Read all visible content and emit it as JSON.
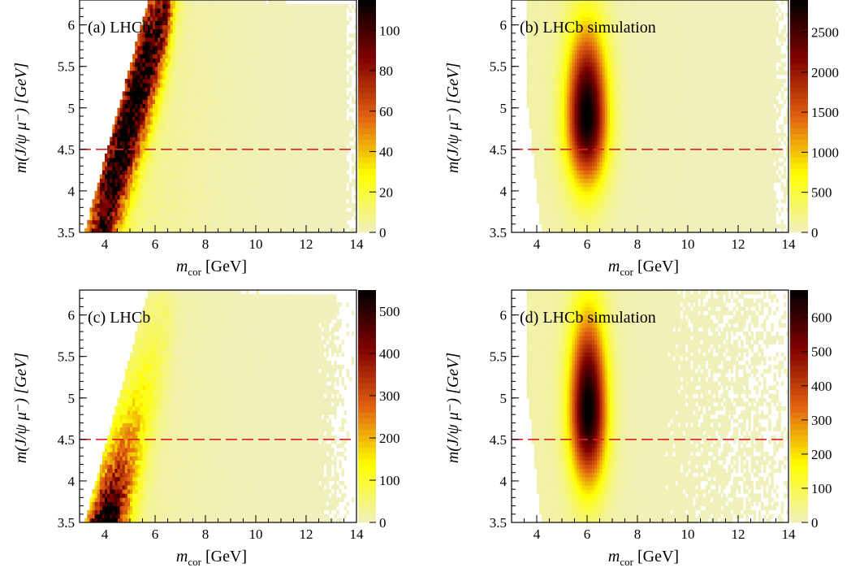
{
  "figure": {
    "description_note": ""
  },
  "chart_data": [
    {
      "type": "heatmap",
      "title": "(a) LHCb",
      "xlabel_main": "m",
      "xlabel_sub": "cor",
      "xlabel_unit": "[GeV]",
      "ylabel": "m(J/ψ μ⁻) [GeV]",
      "xlim": [
        3.0,
        14.0
      ],
      "ylim": [
        3.5,
        6.3
      ],
      "x_ticks": [
        "4",
        "6",
        "8",
        "10",
        "12",
        "14"
      ],
      "y_ticks": [
        "3.5",
        "4",
        "4.5",
        "5",
        "5.5",
        "6"
      ],
      "zlim": [
        0,
        115
      ],
      "z_ticks": [
        "0",
        "20",
        "40",
        "60",
        "80",
        "100"
      ],
      "reference_line_y": 4.5,
      "reference_line_color": "#e02020",
      "ridge": {
        "slope_x_per_y": 0.9,
        "x_at_y3_6": 3.9,
        "width": 0.5,
        "cutoff_x": 6.5
      },
      "peak_content": 115,
      "background_content": 8,
      "palette": [
        "#f0f0c0",
        "#ffff00",
        "#e06010",
        "#800000",
        "#000000"
      ]
    },
    {
      "type": "heatmap",
      "title": "(b) LHCb simulation",
      "xlabel_main": "m",
      "xlabel_sub": "cor",
      "xlabel_unit": "[GeV]",
      "ylabel": "m(J/ψ μ⁻) [GeV]",
      "xlim": [
        3.0,
        14.0
      ],
      "ylim": [
        3.5,
        6.3
      ],
      "x_ticks": [
        "4",
        "6",
        "8",
        "10",
        "12",
        "14"
      ],
      "y_ticks": [
        "3.5",
        "4",
        "4.5",
        "5",
        "5.5",
        "6"
      ],
      "zlim": [
        0,
        2900
      ],
      "z_ticks": [
        "0",
        "500",
        "1000",
        "1500",
        "2000",
        "2500"
      ],
      "reference_line_y": 4.5,
      "reference_line_color": "#e02020",
      "blob": {
        "x_center": 6.0,
        "y_center": 4.9,
        "sigma_x": 0.55,
        "sigma_y": 0.55
      },
      "peak_content": 2900,
      "palette": [
        "#f0f0c0",
        "#ffff00",
        "#e06010",
        "#800000",
        "#000000"
      ]
    },
    {
      "type": "heatmap",
      "title": "(c) LHCb",
      "xlabel_main": "m",
      "xlabel_sub": "cor",
      "xlabel_unit": "[GeV]",
      "ylabel": "m(J/ψ μ⁻) [GeV]",
      "xlim": [
        3.0,
        14.0
      ],
      "ylim": [
        3.5,
        6.3
      ],
      "x_ticks": [
        "4",
        "6",
        "8",
        "10",
        "12",
        "14"
      ],
      "y_ticks": [
        "3.5",
        "4",
        "4.5",
        "5",
        "5.5",
        "6"
      ],
      "zlim": [
        0,
        550
      ],
      "z_ticks": [
        "0",
        "100",
        "200",
        "300",
        "400",
        "500"
      ],
      "reference_line_y": 4.5,
      "reference_line_color": "#e02020",
      "ridge": {
        "slope_x_per_y": 0.9,
        "x_at_y3_6": 4.1,
        "width": 0.55,
        "cutoff_x": 6.5
      },
      "peak_content": 550,
      "background_content": 25,
      "palette": [
        "#f0f0c0",
        "#ffff00",
        "#e06010",
        "#800000",
        "#000000"
      ]
    },
    {
      "type": "heatmap",
      "title": "(d) LHCb simulation",
      "xlabel_main": "m",
      "xlabel_sub": "cor",
      "xlabel_unit": "[GeV]",
      "ylabel": "m(J/ψ μ⁻) [GeV]",
      "xlim": [
        3.0,
        14.0
      ],
      "ylim": [
        3.5,
        6.3
      ],
      "x_ticks": [
        "4",
        "6",
        "8",
        "10",
        "12",
        "14"
      ],
      "y_ticks": [
        "3.5",
        "4",
        "4.5",
        "5",
        "5.5",
        "6"
      ],
      "zlim": [
        0,
        680
      ],
      "z_ticks": [
        "0",
        "100",
        "200",
        "300",
        "400",
        "500",
        "600"
      ],
      "reference_line_y": 4.5,
      "reference_line_color": "#e02020",
      "blob": {
        "x_center": 6.05,
        "y_center": 4.85,
        "sigma_x": 0.5,
        "sigma_y": 0.6
      },
      "peak_content": 680,
      "palette": [
        "#f0f0c0",
        "#ffff00",
        "#e06010",
        "#800000",
        "#000000"
      ]
    }
  ]
}
